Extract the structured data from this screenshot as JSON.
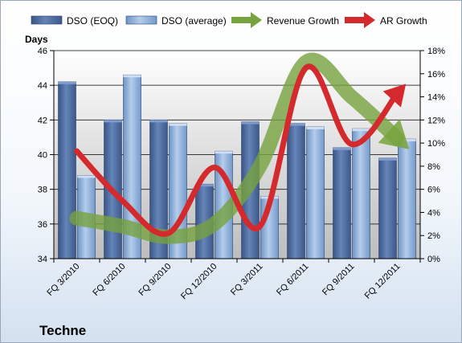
{
  "chart_data": {
    "type": "bar",
    "title": "Techne",
    "ylabel": "Days",
    "ylim": [
      34,
      46
    ],
    "y_ticks": [
      34,
      36,
      38,
      40,
      42,
      44,
      46
    ],
    "y2lim": [
      0,
      18
    ],
    "y2_ticks": [
      "0%",
      "2%",
      "4%",
      "6%",
      "8%",
      "10%",
      "12%",
      "14%",
      "16%",
      "18%"
    ],
    "grid": true,
    "legend_position": "top",
    "categories": [
      "FQ 3/2010",
      "FQ 6/2010",
      "FQ 9/2010",
      "FQ 12/2010",
      "FQ 3/2011",
      "FQ 6/2011",
      "FQ 9/2011",
      "FQ 12/2011"
    ],
    "bar_series": [
      {
        "name": "DSO (EOQ)",
        "axis": "left",
        "color": "#4d6a9c",
        "values": [
          44.2,
          42.0,
          42.0,
          38.3,
          41.9,
          41.8,
          40.4,
          39.8
        ]
      },
      {
        "name": "DSO (average)",
        "axis": "left",
        "color": "#8fb1dc",
        "values": [
          38.8,
          44.6,
          41.8,
          40.2,
          37.6,
          41.6,
          41.5,
          40.9
        ]
      }
    ],
    "line_series": [
      {
        "name": "Revenue Growth",
        "axis": "right",
        "color": "#77a33e",
        "values": [
          3.5,
          2.8,
          1.9,
          3.0,
          8.0,
          17.0,
          14.0,
          10.4
        ]
      },
      {
        "name": "AR Growth",
        "axis": "right",
        "color": "#d42a2d",
        "values": [
          9.3,
          5.0,
          2.2,
          7.9,
          2.8,
          16.5,
          9.9,
          14.3
        ]
      }
    ]
  }
}
